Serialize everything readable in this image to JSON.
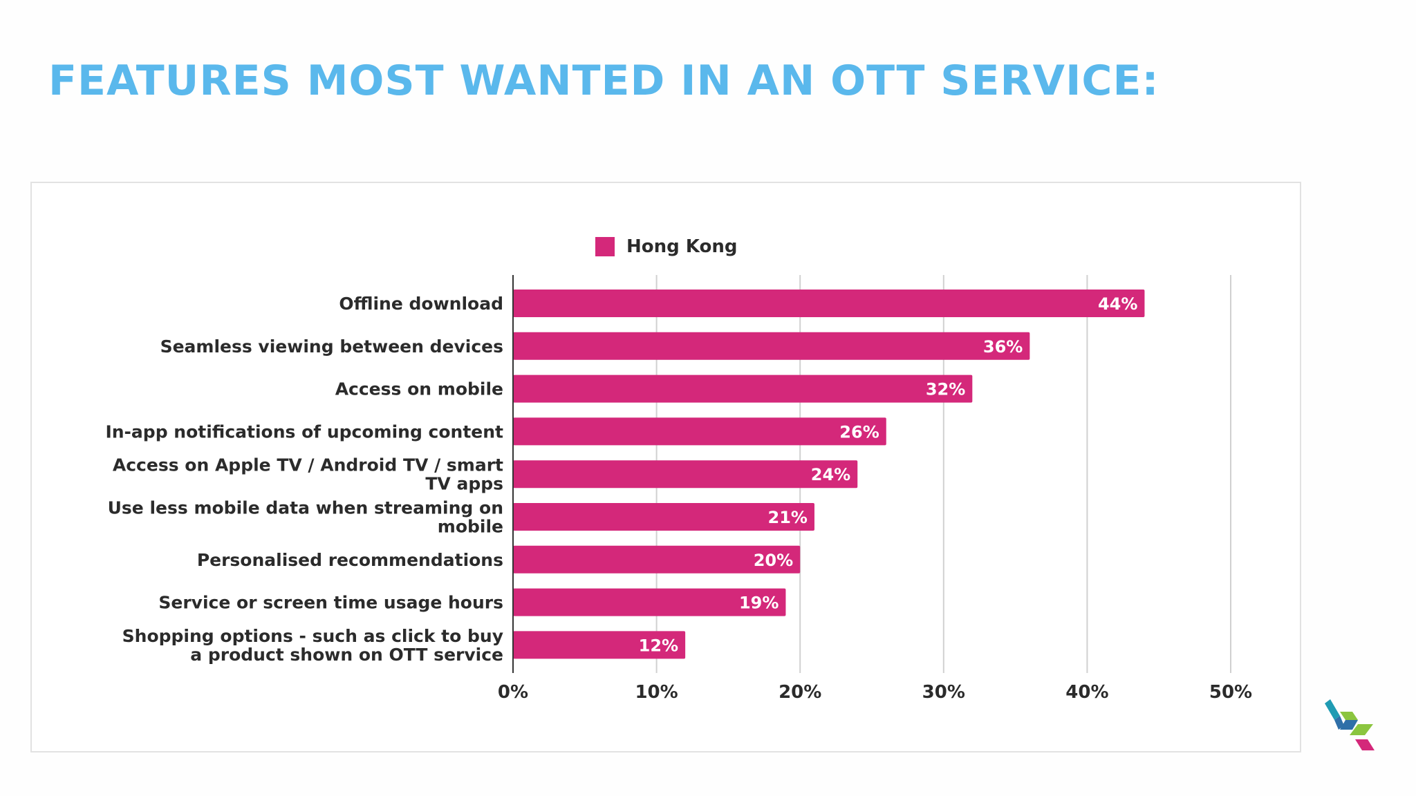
{
  "slide": {
    "title": "FEATURES MOST WANTED IN AN OTT SERVICE:"
  },
  "colors": {
    "title": "#5ab8ec",
    "bar": "#d4287a",
    "bar_label": "#ffffff",
    "axis_text": "#2b2b2b",
    "gridline": "#d0d0d0",
    "logo": [
      "#1f9bb3",
      "#2f6fa8",
      "#8bc53f",
      "#d4287a"
    ]
  },
  "chart_data": {
    "type": "bar",
    "orientation": "horizontal",
    "categories": [
      [
        "Offline download"
      ],
      [
        "Seamless viewing between devices"
      ],
      [
        "Access on mobile"
      ],
      [
        "In-app notifications of upcoming content"
      ],
      [
        "Access on Apple TV / Android TV / smart",
        "TV apps"
      ],
      [
        "Use less mobile data when streaming on",
        "mobile"
      ],
      [
        "Personalised recommendations"
      ],
      [
        "Service or screen time usage hours"
      ],
      [
        "Shopping options - such as click to buy",
        "a product shown on OTT service"
      ]
    ],
    "series": [
      {
        "name": "Hong Kong",
        "values": [
          44,
          36,
          32,
          26,
          24,
          21,
          20,
          19,
          12
        ],
        "labels": [
          "44%",
          "36%",
          "32%",
          "26%",
          "24%",
          "21%",
          "20%",
          "19%",
          "12%"
        ]
      }
    ],
    "xlim": [
      0,
      50
    ],
    "xticks": [
      0,
      10,
      20,
      30,
      40,
      50
    ],
    "xtick_labels": [
      "0%",
      "10%",
      "20%",
      "30%",
      "40%",
      "50%"
    ],
    "grid": true,
    "legend_position": "top-center"
  }
}
